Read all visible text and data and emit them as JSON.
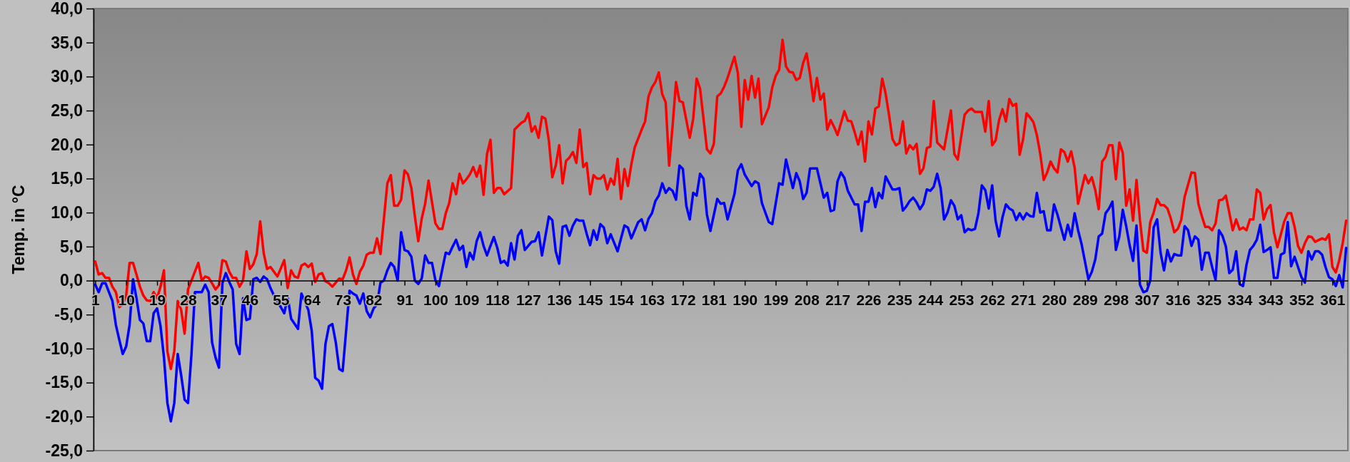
{
  "chart_data": {
    "type": "line",
    "ylabel": "Temp. in °C",
    "xlim": [
      0.5,
      365.5
    ],
    "xticks": [
      1,
      10,
      19,
      28,
      37,
      46,
      55,
      64,
      73,
      82,
      91,
      100,
      109,
      118,
      127,
      136,
      145,
      154,
      163,
      172,
      181,
      190,
      199,
      208,
      217,
      226,
      235,
      244,
      253,
      262,
      271,
      280,
      289,
      298,
      307,
      316,
      325,
      334,
      343,
      352,
      361
    ],
    "ylim": [
      -25,
      40
    ],
    "yticks": [
      {
        "value": -25,
        "label": "-25,0"
      },
      {
        "value": -20,
        "label": "-20,0"
      },
      {
        "value": -15,
        "label": "-15,0"
      },
      {
        "value": -10,
        "label": "-10,0"
      },
      {
        "value": -5,
        "label": "-5,0"
      },
      {
        "value": 0,
        "label": "0,0"
      },
      {
        "value": 5,
        "label": "5,0"
      },
      {
        "value": 10,
        "label": "10,0"
      },
      {
        "value": 15,
        "label": "15,0"
      },
      {
        "value": 20,
        "label": "20,0"
      },
      {
        "value": 25,
        "label": "25,0"
      },
      {
        "value": 30,
        "label": "30,0"
      },
      {
        "value": 35,
        "label": "35,0"
      },
      {
        "value": 40,
        "label": "40,0"
      }
    ],
    "series": [
      {
        "color": "#ff0000",
        "x": [
          1,
          2,
          3,
          4,
          5,
          6,
          7,
          8,
          9,
          10,
          11,
          12,
          13,
          14,
          15,
          16,
          17,
          18,
          19,
          20,
          21,
          22,
          23,
          24,
          25,
          26,
          27,
          28,
          31,
          32,
          33,
          34,
          35,
          36,
          37,
          38,
          39,
          40,
          41,
          42,
          43,
          44,
          45,
          46,
          47,
          48,
          49,
          50,
          51,
          52,
          54,
          56,
          57,
          58,
          59,
          60,
          61,
          62,
          63,
          64,
          65,
          66,
          67,
          68,
          69,
          70,
          71,
          72,
          73,
          74,
          75,
          76,
          77,
          78,
          79,
          80,
          81,
          82,
          83,
          84,
          85,
          86,
          87,
          88,
          89,
          90,
          91,
          92,
          93,
          94,
          95,
          96,
          97,
          98,
          99,
          100,
          101,
          102,
          103,
          104,
          105,
          106,
          107,
          108,
          109,
          110,
          111,
          112,
          113,
          114,
          115,
          116,
          117,
          118,
          119,
          120,
          122,
          123,
          125,
          126,
          127,
          128,
          129,
          130,
          131,
          132,
          133,
          134,
          135,
          136,
          137,
          138,
          139,
          140,
          141,
          142,
          143,
          144,
          145,
          146,
          147,
          148,
          149,
          150,
          151,
          152,
          153,
          154,
          155,
          156,
          157,
          158,
          160,
          161,
          162,
          163,
          164,
          165,
          166,
          167,
          168,
          169,
          170,
          171,
          172,
          174,
          175,
          176,
          177,
          178,
          179,
          180,
          181,
          182,
          183,
          184,
          185,
          187,
          188,
          189,
          190,
          191,
          192,
          193,
          194,
          195,
          197,
          198,
          199,
          200,
          201,
          202,
          203,
          204,
          205,
          206,
          207,
          208,
          209,
          210,
          211,
          212,
          213,
          214,
          215,
          216,
          217,
          219,
          220,
          221,
          222,
          223,
          224,
          225,
          226,
          227,
          228,
          229,
          230,
          231,
          232,
          233,
          234,
          235,
          236,
          237,
          238,
          239,
          240,
          241,
          242,
          243,
          244,
          245,
          246,
          247,
          248,
          250,
          251,
          252,
          253,
          254,
          255,
          256,
          257,
          259,
          260,
          261,
          262,
          263,
          264,
          265,
          266,
          267,
          268,
          269,
          270,
          271,
          272,
          273,
          274,
          275,
          276,
          277,
          278,
          279,
          280,
          281,
          282,
          283,
          284,
          285,
          286,
          287,
          288,
          289,
          290,
          291,
          292,
          293,
          294,
          295,
          296,
          297,
          298,
          299,
          300,
          301,
          302,
          303,
          304,
          305,
          306,
          307,
          308,
          309,
          310,
          311,
          312,
          313,
          314,
          315,
          316,
          317,
          318,
          320,
          321,
          322,
          323,
          324,
          325,
          326,
          327,
          328,
          329,
          330,
          331,
          332,
          333,
          334,
          335,
          336,
          337,
          338,
          339,
          340,
          341,
          342,
          343,
          344,
          345,
          346,
          347,
          348,
          349,
          350,
          351,
          352,
          353,
          354,
          355,
          356,
          358,
          359,
          360,
          361,
          362,
          363,
          364,
          365
        ],
        "values": [
          2.8,
          0.9,
          1.1,
          0.4,
          0.4,
          -0.9,
          -1.7,
          -3.9,
          -3.5,
          -2.2,
          2.6,
          2.6,
          0.9,
          -0.9,
          -2.2,
          -2.9,
          -3.0,
          -1.7,
          -2.6,
          -0.9,
          1.5,
          -10.4,
          -13.0,
          -10.4,
          -3.0,
          -4.3,
          -7.8,
          -1.3,
          2.6,
          0,
          0.6,
          0.4,
          -0.4,
          -1.3,
          -0.7,
          3.0,
          2.8,
          1.3,
          0.4,
          0.4,
          -0.9,
          0,
          4.3,
          1.7,
          2.4,
          3.9,
          8.7,
          4.1,
          1.7,
          2.0,
          0.6,
          3.0,
          -1.1,
          1.5,
          0.6,
          0.4,
          2.2,
          2.5,
          2.0,
          2.5,
          -0.2,
          0.9,
          1.1,
          -0.1,
          -0.4,
          -0.9,
          -0.3,
          0.3,
          0.2,
          1.5,
          3.4,
          0.9,
          -0.5,
          1.3,
          2.2,
          3.8,
          4.1,
          4.1,
          6.2,
          3.9,
          9.1,
          14.3,
          15.5,
          11.0,
          11.0,
          11.9,
          16.2,
          15.6,
          13.6,
          9.5,
          5.8,
          9.1,
          11.3,
          14.7,
          11.5,
          8.4,
          7.6,
          7.6,
          9.9,
          11.4,
          14.3,
          12.7,
          15.7,
          14.3,
          14.9,
          15.6,
          16.7,
          15.3,
          16.9,
          12.6,
          18.6,
          20.7,
          12.9,
          13.6,
          13.6,
          12.7,
          13.6,
          22.2,
          23.2,
          23.5,
          24.6,
          21.9,
          22.7,
          21.0,
          24.1,
          23.8,
          20.6,
          15.2,
          16.9,
          19.9,
          14.3,
          17.6,
          18.1,
          18.9,
          17.3,
          22.2,
          16.7,
          17.3,
          12.7,
          15.5,
          15.0,
          15.0,
          15.5,
          13.4,
          15.0,
          14.1,
          17.9,
          12.0,
          16.4,
          13.9,
          17.1,
          19.6,
          22.2,
          23.4,
          27.1,
          28.4,
          29.2,
          30.6,
          27.4,
          26.2,
          16.9,
          22.7,
          29.2,
          26.4,
          26.2,
          21.0,
          23.8,
          29.7,
          28.2,
          23.8,
          19.3,
          18.7,
          20.1,
          27.1,
          27.5,
          28.5,
          29.8,
          32.9,
          30.5,
          22.6,
          29.5,
          26.6,
          30.1,
          26.9,
          29.7,
          23.0,
          25.5,
          28.4,
          30.1,
          31.0,
          35.4,
          31.5,
          30.7,
          30.6,
          29.5,
          29.8,
          32.0,
          33.4,
          30.3,
          26.4,
          29.8,
          26.6,
          27.5,
          22.2,
          23.6,
          22.6,
          21.4,
          24.9,
          23.5,
          23.4,
          21.8,
          20.0,
          21.9,
          17.5,
          23.4,
          21.5,
          25.3,
          25.6,
          29.7,
          27.5,
          24.3,
          20.8,
          19.9,
          20.2,
          23.4,
          18.7,
          19.9,
          19.3,
          20.1,
          15.7,
          16.5,
          19.5,
          19.7,
          26.4,
          20.3,
          19.8,
          19.3,
          25.0,
          18.6,
          17.8,
          21.2,
          24.4,
          25.0,
          25.3,
          24.8,
          24.8,
          21.9,
          26.4,
          19.9,
          20.6,
          23.6,
          25.2,
          23.4,
          26.7,
          25.7,
          26.0,
          18.5,
          20.8,
          24.6,
          24.0,
          23.3,
          21.4,
          18.6,
          14.8,
          15.9,
          17.5,
          16.5,
          15.9,
          19.3,
          18.9,
          17.5,
          19.0,
          16.6,
          11.3,
          13.4,
          15.5,
          14.3,
          15.2,
          13.3,
          10.5,
          17.5,
          18.2,
          19.9,
          19.9,
          14.9,
          20.3,
          18.8,
          11.0,
          13.4,
          8.8,
          14.8,
          8.9,
          4.4,
          4.1,
          8.6,
          10.0,
          12.0,
          11.1,
          11.1,
          10.6,
          9.1,
          7.1,
          7.6,
          8.9,
          12.3,
          15.9,
          15.8,
          11.3,
          9.5,
          7.9,
          7.9,
          7.4,
          8.4,
          11.8,
          11.9,
          12.5,
          10.0,
          7.4,
          9.0,
          7.5,
          7.8,
          7.4,
          9.0,
          9.0,
          13.4,
          12.9,
          9.0,
          10.5,
          11.1,
          7.1,
          4.9,
          6.8,
          8.7,
          9.9,
          9.9,
          7.9,
          5.1,
          4.1,
          5.5,
          6.5,
          6.4,
          5.7,
          6.2,
          6.0,
          6.8,
          2.0,
          1.2,
          3.0,
          5.5,
          8.8
        ]
      },
      {
        "color": "#0000ff",
        "x": [
          1,
          2,
          3,
          4,
          6,
          7,
          8,
          9,
          10,
          11,
          12,
          13,
          14,
          15,
          16,
          17,
          18,
          19,
          20,
          21,
          22,
          23,
          24,
          25,
          26,
          27,
          28,
          29,
          30,
          32,
          33,
          34,
          35,
          36,
          37,
          38,
          39,
          40,
          41,
          42,
          43,
          44,
          45,
          46,
          47,
          48,
          49,
          50,
          51,
          52,
          53,
          55,
          56,
          57,
          58,
          60,
          61,
          63,
          64,
          65,
          66,
          67,
          68,
          69,
          70,
          71,
          72,
          73,
          74,
          75,
          76,
          77,
          78,
          79,
          80,
          81,
          82,
          83,
          84,
          85,
          86,
          87,
          88,
          89,
          90,
          91,
          92,
          93,
          94,
          95,
          96,
          97,
          98,
          99,
          100,
          101,
          102,
          103,
          104,
          105,
          106,
          107,
          108,
          109,
          110,
          111,
          112,
          113,
          114,
          115,
          116,
          117,
          118,
          119,
          120,
          121,
          122,
          123,
          124,
          125,
          126,
          128,
          129,
          130,
          131,
          133,
          134,
          135,
          136,
          137,
          138,
          139,
          140,
          141,
          142,
          143,
          144,
          145,
          146,
          147,
          148,
          149,
          150,
          151,
          153,
          155,
          156,
          157,
          159,
          160,
          161,
          162,
          163,
          164,
          165,
          166,
          167,
          168,
          169,
          170,
          171,
          172,
          173,
          174,
          175,
          176,
          177,
          178,
          179,
          180,
          182,
          183,
          184,
          185,
          187,
          188,
          189,
          190,
          192,
          193,
          194,
          195,
          197,
          198,
          199,
          200,
          201,
          202,
          204,
          205,
          206,
          207,
          208,
          209,
          211,
          213,
          214,
          215,
          216,
          217,
          218,
          219,
          220,
          222,
          223,
          224,
          225,
          226,
          227,
          228,
          229,
          230,
          231,
          233,
          234,
          235,
          236,
          237,
          238,
          239,
          240,
          241,
          242,
          243,
          244,
          245,
          246,
          247,
          248,
          249,
          250,
          251,
          252,
          253,
          254,
          255,
          256,
          257,
          258,
          259,
          260,
          261,
          262,
          263,
          264,
          265,
          266,
          267,
          268,
          269,
          270,
          271,
          272,
          273,
          274,
          275,
          276,
          277,
          278,
          279,
          280,
          281,
          283,
          284,
          285,
          286,
          287,
          288,
          290,
          291,
          292,
          293,
          294,
          295,
          296,
          297,
          298,
          299,
          300,
          301,
          302,
          303,
          304,
          305,
          306,
          307,
          308,
          309,
          310,
          311,
          312,
          313,
          314,
          315,
          316,
          317,
          318,
          319,
          320,
          321,
          322,
          323,
          324,
          325,
          326,
          327,
          328,
          329,
          330,
          331,
          332,
          333,
          334,
          335,
          336,
          337,
          338,
          339,
          340,
          341,
          342,
          343,
          344,
          345,
          346,
          347,
          348,
          349,
          350,
          351,
          352,
          353,
          354,
          355,
          356,
          357,
          358,
          359,
          360,
          361,
          362,
          363,
          364,
          365
        ],
        "values": [
          -0.6,
          -1.7,
          -0.4,
          -0.4,
          -3.0,
          -6.5,
          -8.7,
          -10.8,
          -9.7,
          -6.5,
          0.2,
          -2.6,
          -5.8,
          -6.3,
          -8.9,
          -8.9,
          -4.8,
          -4.1,
          -6.7,
          -11.3,
          -18.0,
          -20.7,
          -18.0,
          -10.8,
          -13.9,
          -17.5,
          -18.0,
          -10.8,
          -1.7,
          -1.7,
          -0.6,
          -1.7,
          -9.1,
          -11.3,
          -12.8,
          -0.4,
          1.1,
          -0.2,
          -1.3,
          -9.3,
          -10.8,
          -2.6,
          -5.8,
          -5.6,
          0.2,
          0.4,
          -0.2,
          0.6,
          0.2,
          -1.1,
          -2.2,
          -3.9,
          -4.8,
          -2.4,
          -5.6,
          -7.1,
          -1.9,
          -4.3,
          -7.4,
          -14.3,
          -14.7,
          -15.9,
          -9.3,
          -6.7,
          -6.4,
          -9.1,
          -13.0,
          -13.3,
          -7.4,
          -1.5,
          -1.9,
          -2.2,
          -3.4,
          -1.9,
          -4.5,
          -5.4,
          -4.1,
          -3.5,
          -0.3,
          0,
          1.5,
          2.6,
          2.0,
          0,
          7.1,
          4.5,
          4.3,
          3.5,
          0,
          -0.5,
          0.3,
          3.7,
          2.6,
          2.6,
          0,
          -0.8,
          1.7,
          4.1,
          3.9,
          5.0,
          6.0,
          4.5,
          5.1,
          2.0,
          4.1,
          3.1,
          5.8,
          7.1,
          5.1,
          3.7,
          5.1,
          6.4,
          4.8,
          2.6,
          2.9,
          2.2,
          5.5,
          3.1,
          6.6,
          7.4,
          4.5,
          5.7,
          5.8,
          7.1,
          3.7,
          9.4,
          8.9,
          4.3,
          2.5,
          7.9,
          8.1,
          6.6,
          8.1,
          9.0,
          8.8,
          8.8,
          6.9,
          5.2,
          7.4,
          6.0,
          8.3,
          7.8,
          5.5,
          6.8,
          4.3,
          8.1,
          7.8,
          6.2,
          8.6,
          9.0,
          7.4,
          9.1,
          9.9,
          11.7,
          12.5,
          14.3,
          12.9,
          13.6,
          13.2,
          11.9,
          16.9,
          16.4,
          11.0,
          9.0,
          12.9,
          12.5,
          15.7,
          15.0,
          9.7,
          7.3,
          12.0,
          11.3,
          11.4,
          9.0,
          12.7,
          16.2,
          17.1,
          15.6,
          13.9,
          14.6,
          14.3,
          11.4,
          8.6,
          8.3,
          11.3,
          14.3,
          14.1,
          17.8,
          13.6,
          15.8,
          14.6,
          12.0,
          12.9,
          16.5,
          16.5,
          12.2,
          12.9,
          10.2,
          10.4,
          14.6,
          15.9,
          15.1,
          13.2,
          11.2,
          11.2,
          7.3,
          11.6,
          11.6,
          13.6,
          10.8,
          12.9,
          12.1,
          15.3,
          13.4,
          13.4,
          13.6,
          10.3,
          10.9,
          11.7,
          12.2,
          11.5,
          10.5,
          11.3,
          13.4,
          13.2,
          13.8,
          15.7,
          13.6,
          9.0,
          10.0,
          11.8,
          11.0,
          9.0,
          9.6,
          7.1,
          7.6,
          7.4,
          7.6,
          9.9,
          14.0,
          13.3,
          10.6,
          14.0,
          8.8,
          6.5,
          9.3,
          11.2,
          10.6,
          10.3,
          8.9,
          9.9,
          9.0,
          9.9,
          9.5,
          9.4,
          12.9,
          10.0,
          10.2,
          7.4,
          7.4,
          11.2,
          9.7,
          6.0,
          8.2,
          6.5,
          9.9,
          7.4,
          5.4,
          0.2,
          1.3,
          3.1,
          6.5,
          6.9,
          9.9,
          10.6,
          11.6,
          4.5,
          6.5,
          10.4,
          8.0,
          5.2,
          2.9,
          8.1,
          -0.6,
          -1.7,
          -1.5,
          0,
          7.8,
          9.0,
          4.1,
          1.5,
          4.5,
          2.8,
          3.9,
          3.7,
          3.7,
          8.0,
          7.4,
          5.1,
          6.5,
          6.0,
          1.6,
          4.1,
          4.1,
          2.0,
          0.1,
          7.4,
          6.6,
          5.0,
          1.1,
          1.6,
          4.3,
          -0.5,
          -0.8,
          2.3,
          4.5,
          5.1,
          6.0,
          8.2,
          4.2,
          4.5,
          4.9,
          0.4,
          0.4,
          3.8,
          4.1,
          8.6,
          2.1,
          3.5,
          2.0,
          0.5,
          -0.3,
          4.3,
          3.1,
          4.3,
          4.3,
          3.8,
          2.0,
          0.5,
          0.2,
          -0.8,
          0.8,
          -1.0,
          4.8
        ]
      }
    ]
  }
}
